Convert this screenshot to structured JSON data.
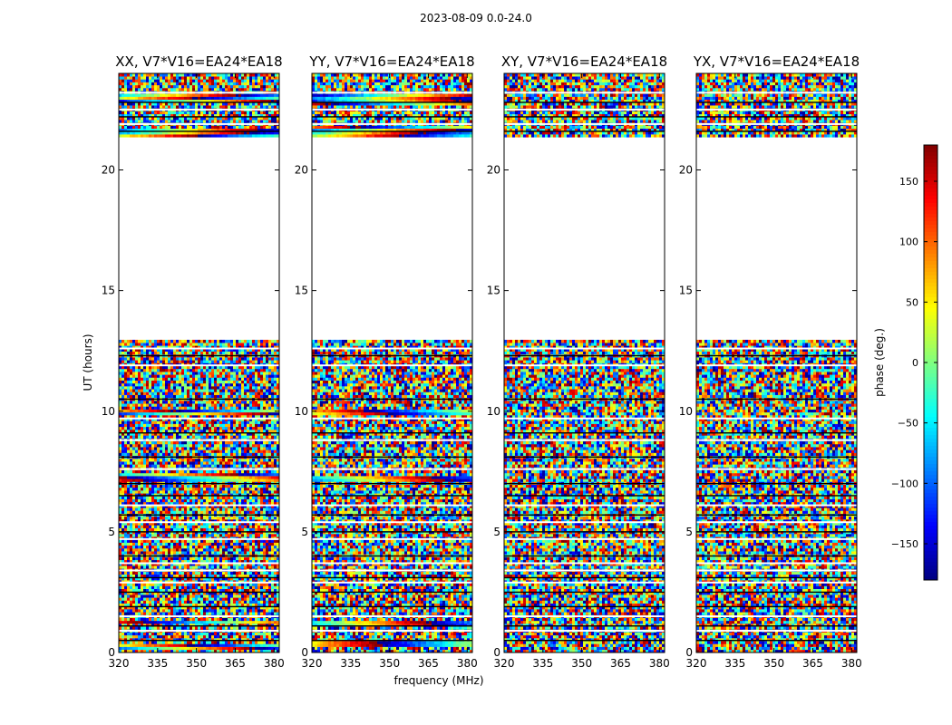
{
  "figure": {
    "suptitle": "2023-08-09 0.0-24.0"
  },
  "chart_data": {
    "type": "heatmap",
    "shared_xlabel": "frequency (MHz)",
    "shared_ylabel": "UT (hours)",
    "xlim": [
      320,
      382
    ],
    "ylim": [
      0,
      24
    ],
    "xticks": [
      320,
      335,
      350,
      365,
      380
    ],
    "yticks": [
      0,
      5,
      10,
      15,
      20
    ],
    "panels": [
      {
        "title": "XX, V7*V16=EA24*EA18",
        "pol": "XX"
      },
      {
        "title": "YY, V7*V16=EA24*EA18",
        "pol": "YY"
      },
      {
        "title": "XY, V7*V16=EA24*EA18",
        "pol": "XY"
      },
      {
        "title": "YX, V7*V16=EA24*EA18",
        "pol": "YX"
      }
    ],
    "data_gaps_hours": [
      [
        13.0,
        21.4
      ]
    ],
    "colorbar": {
      "label": "phase (deg.)",
      "range": [
        -180,
        180
      ],
      "ticks": [
        150,
        100,
        50,
        0,
        -50,
        -100,
        -150
      ],
      "colormap": "jet"
    }
  }
}
